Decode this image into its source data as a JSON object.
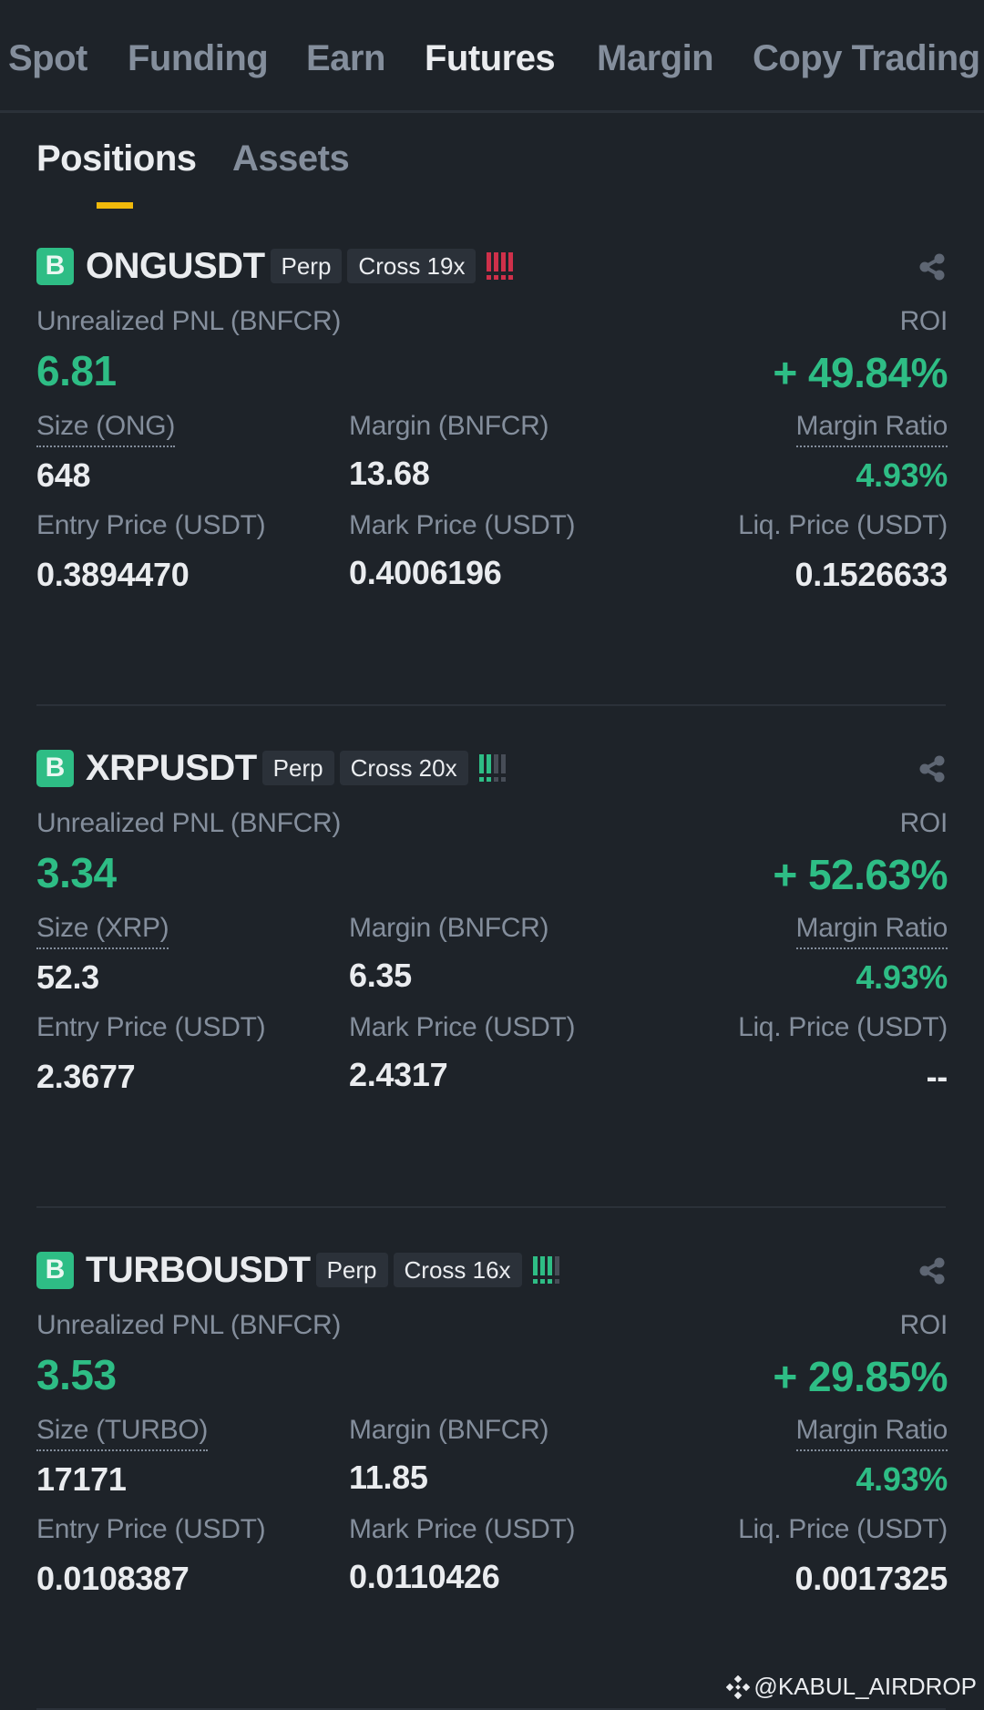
{
  "top_tabs": [
    {
      "label": "Spot",
      "active": false
    },
    {
      "label": "Funding",
      "active": false
    },
    {
      "label": "Earn",
      "active": false
    },
    {
      "label": "Futures",
      "active": true
    },
    {
      "label": "Margin",
      "active": false
    },
    {
      "label": "Copy Trading",
      "active": false
    }
  ],
  "sub_tabs": [
    {
      "label": "Positions",
      "active": true
    },
    {
      "label": "Assets",
      "active": false
    }
  ],
  "colors": {
    "background": "#1e2329",
    "accent_yellow": "#f0b90b",
    "positive_green": "#2ebd85",
    "risk_red": "#cf304a",
    "muted_text": "#848e9c",
    "tag_bg": "#2b3139"
  },
  "labels": {
    "unrealized_pnl": "Unrealized PNL (BNFCR)",
    "roi": "ROI",
    "margin": "Margin (BNFCR)",
    "margin_ratio": "Margin Ratio",
    "entry_price": "Entry Price (USDT)",
    "mark_price": "Mark Price (USDT)",
    "liq_price": "Liq. Price (USDT)"
  },
  "positions": [
    {
      "side": "B",
      "symbol": "ONGUSDT",
      "contract_type": "Perp",
      "leverage": "Cross 19x",
      "risk_level": "high",
      "risk_bars": [
        "#cf304a",
        "#cf304a",
        "#cf304a",
        "#cf304a"
      ],
      "unrealized_pnl": "6.81",
      "roi": "+ 49.84%",
      "size_label": "Size (ONG)",
      "size": "648",
      "margin": "13.68",
      "margin_ratio": "4.93%",
      "entry_price": "0.3894470",
      "mark_price": "0.4006196",
      "liq_price": "0.1526633"
    },
    {
      "side": "B",
      "symbol": "XRPUSDT",
      "contract_type": "Perp",
      "leverage": "Cross 20x",
      "risk_level": "low",
      "risk_bars": [
        "#2ebd85",
        "#2ebd85",
        "#474d57",
        "#474d57"
      ],
      "unrealized_pnl": "3.34",
      "roi": "+ 52.63%",
      "size_label": "Size (XRP)",
      "size": "52.3",
      "margin": "6.35",
      "margin_ratio": "4.93%",
      "entry_price": "2.3677",
      "mark_price": "2.4317",
      "liq_price": "--"
    },
    {
      "side": "B",
      "symbol": "TURBOUSDT",
      "contract_type": "Perp",
      "leverage": "Cross 16x",
      "risk_level": "medium",
      "risk_bars": [
        "#2ebd85",
        "#2ebd85",
        "#2ebd85",
        "#474d57"
      ],
      "unrealized_pnl": "3.53",
      "roi": "+ 29.85%",
      "size_label": "Size (TURBO)",
      "size": "17171",
      "margin": "11.85",
      "margin_ratio": "4.93%",
      "entry_price": "0.0108387",
      "mark_price": "0.0110426",
      "liq_price": "0.0017325"
    }
  ],
  "watermark": "@KABUL_AIRDROP"
}
